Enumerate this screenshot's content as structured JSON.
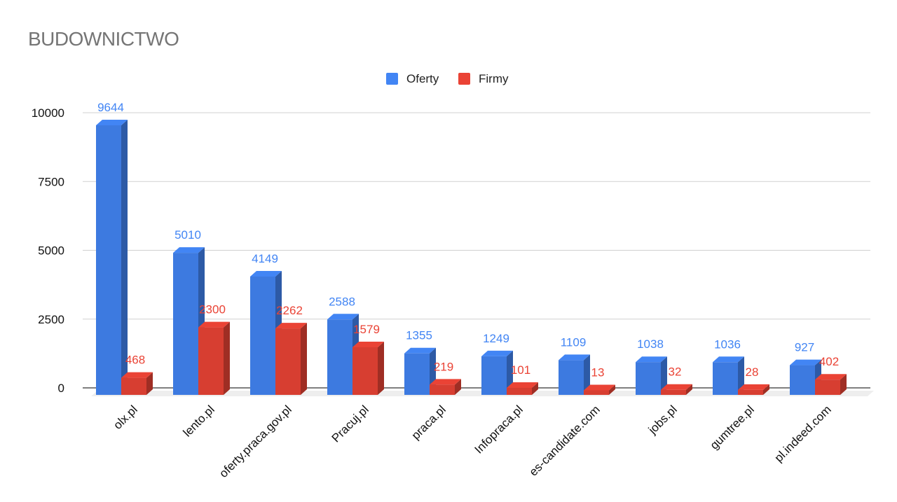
{
  "chart_data": {
    "type": "bar",
    "title": "BUDOWNICTWO",
    "categories": [
      "olx.pl",
      "lento.pl",
      "oferty.praca.gov.pl",
      "Pracuj.pl",
      "praca.pl",
      "Infopraca.pl",
      "es-candidate.com",
      "jobs.pl",
      "gumtree.pl",
      "pl.indeed.com"
    ],
    "series": [
      {
        "name": "Oferty",
        "color": "#4285f4",
        "values": [
          9644,
          5010,
          4149,
          2588,
          1355,
          1249,
          1109,
          1038,
          1036,
          927
        ]
      },
      {
        "name": "Firmy",
        "color": "#ea4335",
        "values": [
          468,
          2300,
          2262,
          1579,
          219,
          101,
          13,
          32,
          28,
          402
        ]
      }
    ],
    "ylim": [
      0,
      10000
    ],
    "yticks": [
      0,
      2500,
      5000,
      7500,
      10000
    ],
    "grid": true,
    "legend_position": "top-center",
    "style": "3d"
  }
}
